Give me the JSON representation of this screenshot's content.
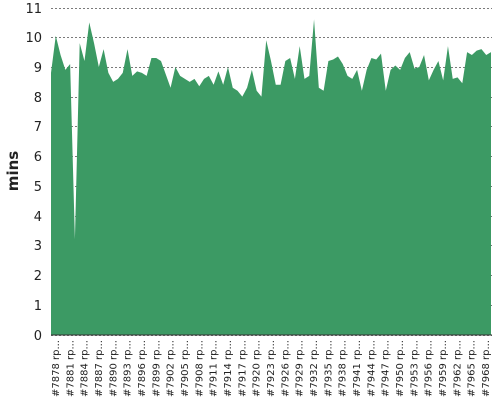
{
  "chart_data": {
    "type": "area",
    "title": "",
    "xlabel": "",
    "ylabel": "mins",
    "ylim": [
      0,
      11
    ],
    "yticks": [
      0,
      1,
      2,
      3,
      4,
      5,
      6,
      7,
      8,
      9,
      10,
      11
    ],
    "grid": true,
    "legend": "none",
    "color": "#3c9a64",
    "tick_labels": [
      "#7878 rp...",
      "#7881 rp...",
      "#7884 rp...",
      "#7887 rp...",
      "#7890 rp...",
      "#7893 rp...",
      "#7896 rp...",
      "#7899 rp...",
      "#7902 rp...",
      "#7905 rp...",
      "#7908 rp...",
      "#7911 rp...",
      "#7914 rp...",
      "#7917 rp...",
      "#7920 rp...",
      "#7923 rp...",
      "#7926 rp...",
      "#7929 rp...",
      "#7932 rp...",
      "#7935 rp...",
      "#7938 rp...",
      "#7941 rp...",
      "#7944 rp...",
      "#7947 rp...",
      "#7950 rp...",
      "#7953 rp...",
      "#7956 rp...",
      "#7959 rp...",
      "#7962 rp...",
      "#7965 rp...",
      "#7968 rp..."
    ],
    "values": [
      8.8,
      10.05,
      9.4,
      8.9,
      9.1,
      3.2,
      9.8,
      9.2,
      10.5,
      9.8,
      9.0,
      9.6,
      8.8,
      8.5,
      8.6,
      8.8,
      9.6,
      8.7,
      8.85,
      8.8,
      8.7,
      9.3,
      9.3,
      9.2,
      8.75,
      8.3,
      9.0,
      8.7,
      8.6,
      8.5,
      8.6,
      8.35,
      8.6,
      8.7,
      8.4,
      8.85,
      8.4,
      9.0,
      8.3,
      8.2,
      8.0,
      8.3,
      8.9,
      8.2,
      8.0,
      9.9,
      9.2,
      8.4,
      8.4,
      9.2,
      9.3,
      8.6,
      9.7,
      8.6,
      8.7,
      10.6,
      8.3,
      8.2,
      9.2,
      9.25,
      9.35,
      9.1,
      8.7,
      8.6,
      8.9,
      8.2,
      8.9,
      9.3,
      9.25,
      9.45,
      8.2,
      8.9,
      9.05,
      8.9,
      9.3,
      9.5,
      8.95,
      9.0,
      9.4,
      8.55,
      8.9,
      9.2,
      8.55,
      9.7,
      8.6,
      8.65,
      8.45,
      9.5,
      9.4,
      9.55,
      9.6,
      9.4,
      9.5
    ]
  }
}
